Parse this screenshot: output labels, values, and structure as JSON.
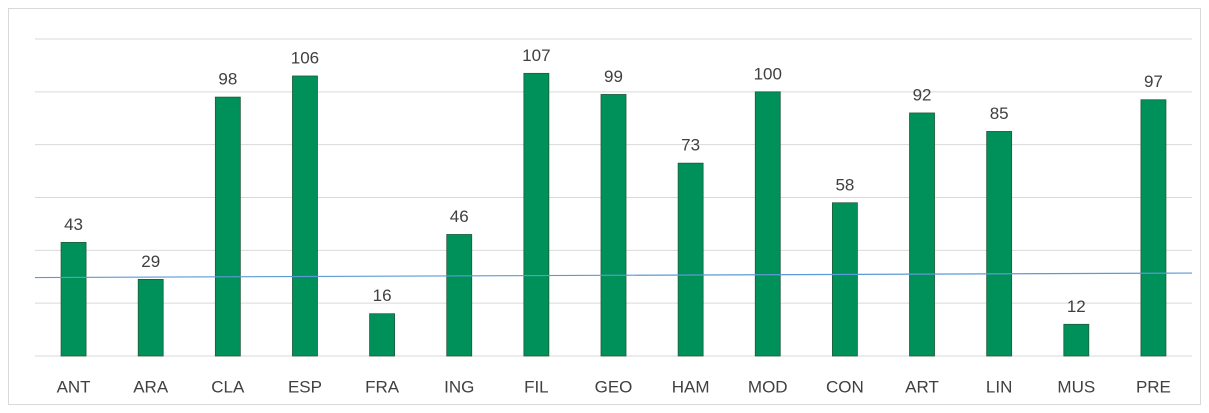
{
  "chart_data": {
    "type": "bar",
    "categories": [
      "ANT",
      "ARA",
      "CLA",
      "ESP",
      "FRA",
      "ING",
      "FIL",
      "GEO",
      "HAM",
      "MOD",
      "CON",
      "ART",
      "LIN",
      "MUS",
      "PRE"
    ],
    "values": [
      43,
      29,
      98,
      106,
      16,
      46,
      107,
      99,
      73,
      100,
      58,
      92,
      85,
      12,
      97
    ],
    "color": "#00915a",
    "ylim": [
      0,
      120
    ],
    "yticks": [
      0,
      20,
      40,
      60,
      80,
      100,
      120
    ],
    "grid": true,
    "tick_labels": false,
    "trendline": {
      "color": "#5b9bd5",
      "values": [
        29.7,
        31.4
      ]
    }
  }
}
